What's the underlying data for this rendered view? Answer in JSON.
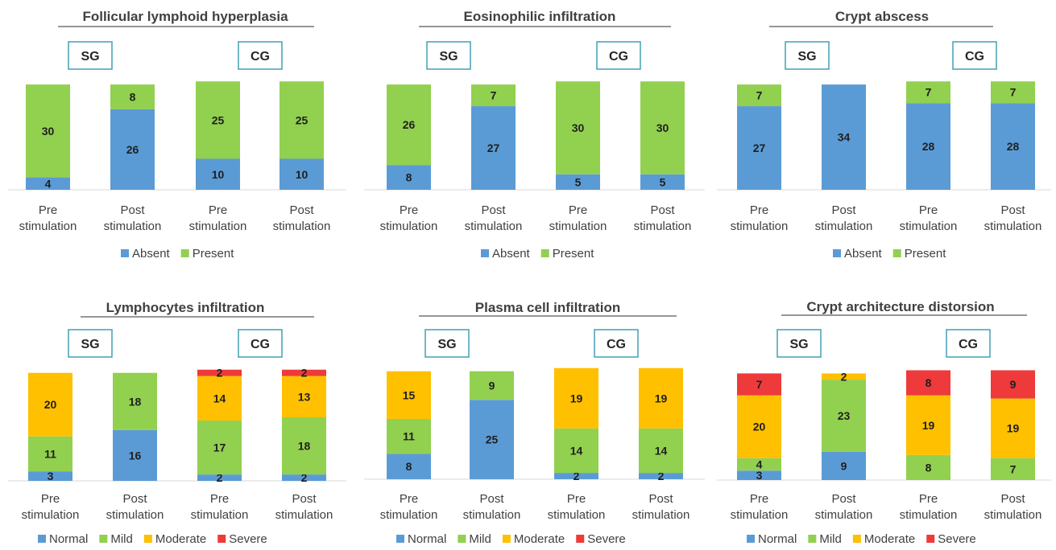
{
  "colors": {
    "Absent": "#5B9BD5",
    "Present": "#92D050",
    "Normal": "#5B9BD5",
    "Mild": "#92D050",
    "Moderate": "#FFC000",
    "Severe": "#EE3A3A",
    "group_box_border": "#41A0B4"
  },
  "group_labels": [
    "SG",
    "CG"
  ],
  "category_line1": [
    "Pre",
    "Post",
    "Pre",
    "Post"
  ],
  "category_line2": [
    "stimulation",
    "stimulation",
    "stimulation",
    "stimulation"
  ],
  "chart_data": [
    {
      "type": "bar",
      "stacked": true,
      "title": "Follicular lymphoid hyperplasia",
      "categories": [
        "Pre stimulation",
        "Post stimulation",
        "Pre stimulation",
        "Post stimulation"
      ],
      "groups": [
        "SG",
        "CG"
      ],
      "series": [
        {
          "name": "Absent",
          "values": [
            4,
            26,
            10,
            10
          ]
        },
        {
          "name": "Present",
          "values": [
            30,
            8,
            25,
            25
          ]
        }
      ],
      "legend": "bottom"
    },
    {
      "type": "bar",
      "stacked": true,
      "title": "Eosinophilic infiltration",
      "categories": [
        "Pre stimulation",
        "Post stimulation",
        "Pre stimulation",
        "Post stimulation"
      ],
      "groups": [
        "SG",
        "CG"
      ],
      "series": [
        {
          "name": "Absent",
          "values": [
            8,
            27,
            5,
            5
          ]
        },
        {
          "name": "Present",
          "values": [
            26,
            7,
            30,
            30
          ]
        }
      ],
      "legend": "bottom"
    },
    {
      "type": "bar",
      "stacked": true,
      "title": "Crypt abscess",
      "categories": [
        "Pre stimulation",
        "Post stimulation",
        "Pre stimulation",
        "Post stimulation"
      ],
      "groups": [
        "SG",
        "CG"
      ],
      "series": [
        {
          "name": "Absent",
          "values": [
            27,
            34,
            28,
            28
          ]
        },
        {
          "name": "Present",
          "values": [
            7,
            0,
            7,
            7
          ]
        }
      ],
      "legend": "bottom"
    },
    {
      "type": "bar",
      "stacked": true,
      "title": "Lymphocytes infiltration",
      "categories": [
        "Pre stimulation",
        "Post stimulation",
        "Pre stimulation",
        "Post stimulation"
      ],
      "groups": [
        "SG",
        "CG"
      ],
      "series": [
        {
          "name": "Normal",
          "values": [
            3,
            16,
            2,
            2
          ]
        },
        {
          "name": "Mild",
          "values": [
            11,
            18,
            17,
            18
          ]
        },
        {
          "name": "Moderate",
          "values": [
            20,
            0,
            14,
            13
          ]
        },
        {
          "name": "Severe",
          "values": [
            0,
            0,
            2,
            2
          ]
        }
      ],
      "legend": "bottom"
    },
    {
      "type": "bar",
      "stacked": true,
      "title": "Plasma cell infiltration",
      "categories": [
        "Pre stimulation",
        "Post stimulation",
        "Pre stimulation",
        "Post stimulation"
      ],
      "groups": [
        "SG",
        "CG"
      ],
      "series": [
        {
          "name": "Normal",
          "values": [
            8,
            25,
            2,
            2
          ]
        },
        {
          "name": "Mild",
          "values": [
            11,
            9,
            14,
            14
          ]
        },
        {
          "name": "Moderate",
          "values": [
            15,
            0,
            19,
            19
          ]
        },
        {
          "name": "Severe",
          "values": [
            0,
            0,
            0,
            0
          ]
        }
      ],
      "legend": "bottom"
    },
    {
      "type": "bar",
      "stacked": true,
      "title": "Crypt architecture distorsion",
      "categories": [
        "Pre stimulation",
        "Post stimulation",
        "Pre stimulation",
        "Post stimulation"
      ],
      "groups": [
        "SG",
        "CG"
      ],
      "series": [
        {
          "name": "Normal",
          "values": [
            3,
            9,
            0,
            0
          ]
        },
        {
          "name": "Mild",
          "values": [
            4,
            23,
            8,
            7
          ]
        },
        {
          "name": "Moderate",
          "values": [
            20,
            2,
            19,
            19
          ]
        },
        {
          "name": "Severe",
          "values": [
            7,
            0,
            8,
            9
          ]
        }
      ],
      "legend": "bottom"
    }
  ]
}
